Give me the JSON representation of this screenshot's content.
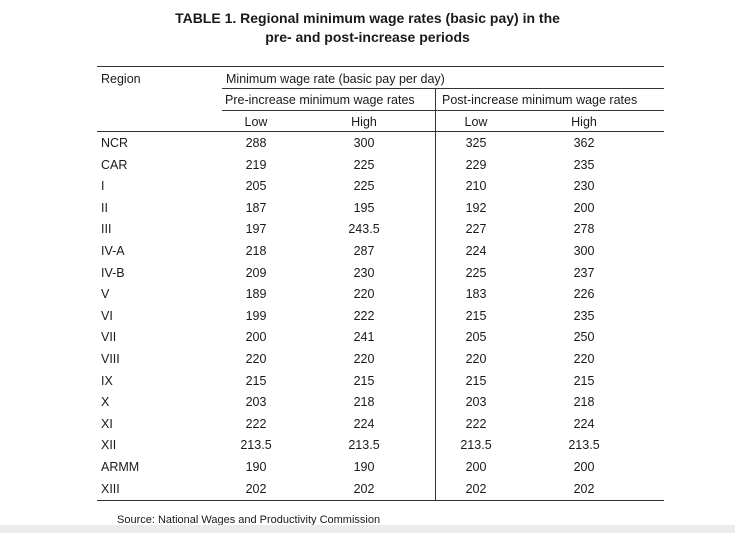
{
  "table": {
    "title_line1": "TABLE 1. Regional minimum wage rates (basic pay) in the",
    "title_line2": "pre- and post-increase periods",
    "header": {
      "region": "Region",
      "group": "Minimum wage rate (basic pay per day)",
      "pre": "Pre-increase minimum wage rates",
      "post": "Post-increase minimum wage rates",
      "pre_low": "Low",
      "pre_high": "High",
      "post_low": "Low",
      "post_high": "High"
    },
    "rows": [
      {
        "region": "NCR",
        "pre_low": "288",
        "pre_high": "300",
        "post_low": "325",
        "post_high": "362"
      },
      {
        "region": "CAR",
        "pre_low": "219",
        "pre_high": "225",
        "post_low": "229",
        "post_high": "235"
      },
      {
        "region": "I",
        "pre_low": "205",
        "pre_high": "225",
        "post_low": "210",
        "post_high": "230"
      },
      {
        "region": "II",
        "pre_low": "187",
        "pre_high": "195",
        "post_low": "192",
        "post_high": "200"
      },
      {
        "region": "III",
        "pre_low": "197",
        "pre_high": "243.5",
        "post_low": "227",
        "post_high": "278"
      },
      {
        "region": "IV-A",
        "pre_low": "218",
        "pre_high": "287",
        "post_low": "224",
        "post_high": "300"
      },
      {
        "region": "IV-B",
        "pre_low": "209",
        "pre_high": "230",
        "post_low": "225",
        "post_high": "237"
      },
      {
        "region": "V",
        "pre_low": "189",
        "pre_high": "220",
        "post_low": "183",
        "post_high": "226"
      },
      {
        "region": "VI",
        "pre_low": "199",
        "pre_high": "222",
        "post_low": "215",
        "post_high": "235"
      },
      {
        "region": "VII",
        "pre_low": "200",
        "pre_high": "241",
        "post_low": "205",
        "post_high": "250"
      },
      {
        "region": "VIII",
        "pre_low": "220",
        "pre_high": "220",
        "post_low": "220",
        "post_high": "220"
      },
      {
        "region": "IX",
        "pre_low": "215",
        "pre_high": "215",
        "post_low": "215",
        "post_high": "215"
      },
      {
        "region": "X",
        "pre_low": "203",
        "pre_high": "218",
        "post_low": "203",
        "post_high": "218"
      },
      {
        "region": "XI",
        "pre_low": "222",
        "pre_high": "224",
        "post_low": "222",
        "post_high": "224"
      },
      {
        "region": "XII",
        "pre_low": "213.5",
        "pre_high": "213.5",
        "post_low": "213.5",
        "post_high": "213.5"
      },
      {
        "region": "ARMM",
        "pre_low": "190",
        "pre_high": "190",
        "post_low": "200",
        "post_high": "200"
      },
      {
        "region": "XIII",
        "pre_low": "202",
        "pre_high": "202",
        "post_low": "202",
        "post_high": "202"
      }
    ],
    "source": "Source: National Wages and Productivity Commission"
  }
}
